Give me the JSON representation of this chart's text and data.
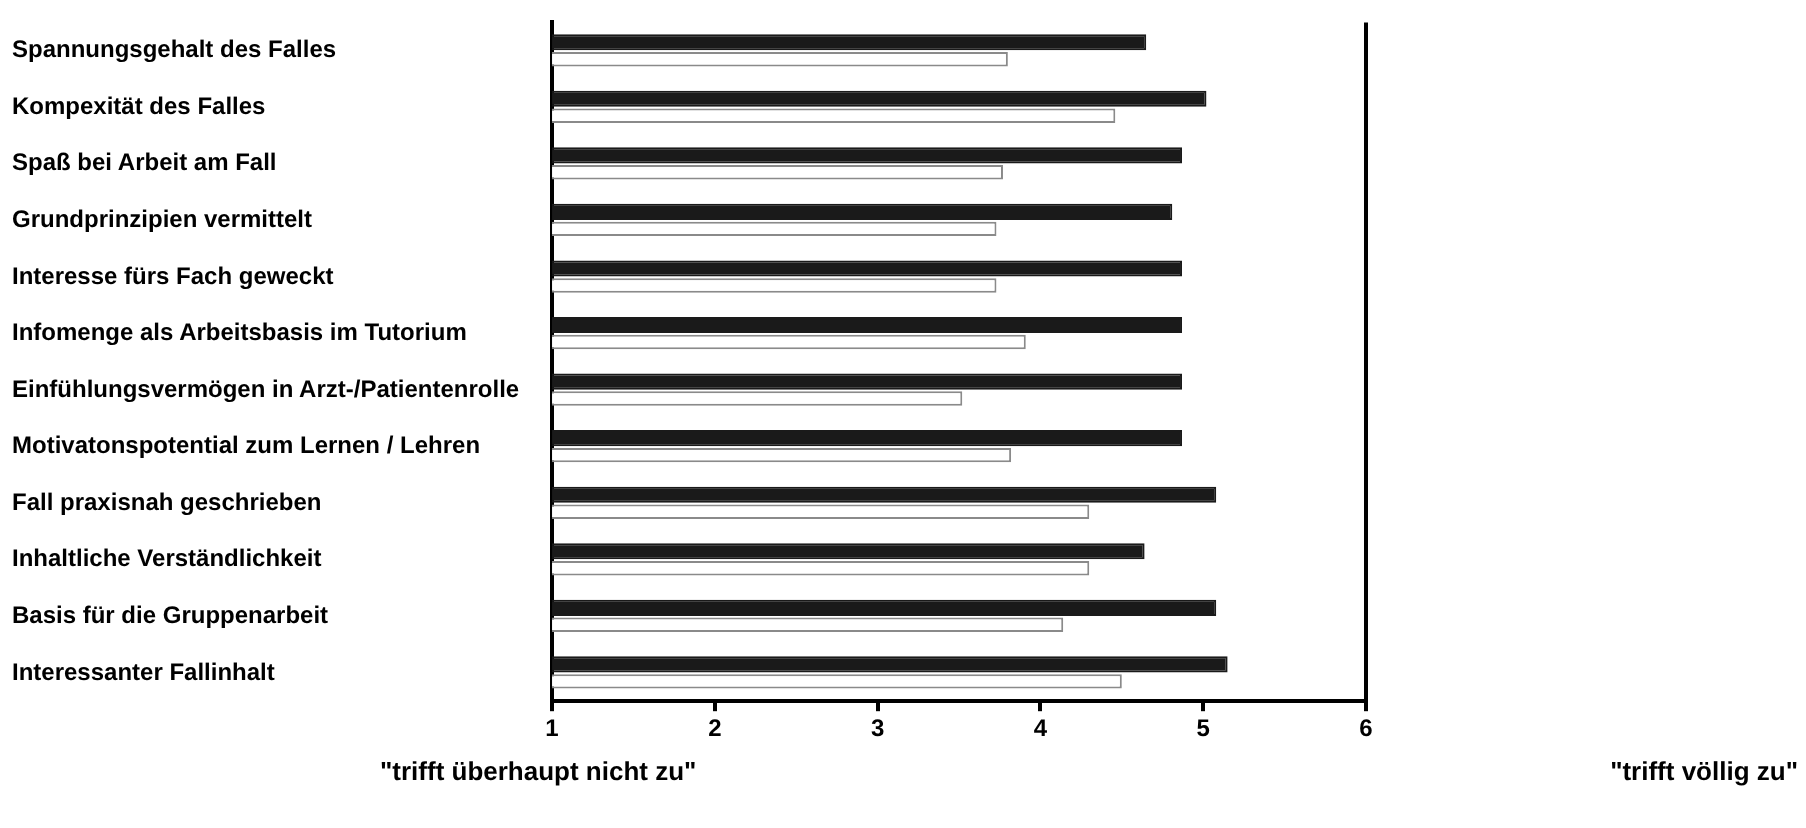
{
  "chart_data": {
    "type": "bar",
    "orientation": "horizontal",
    "categories": [
      "Spannungsgehalt des Falles",
      "Kompexität des Falles",
      "Spaß bei Arbeit am Fall",
      "Grundprinzipien vermittelt",
      "Interesse fürs Fach geweckt",
      "Infomenge als Arbeitsbasis im Tutorium",
      "Einfühlungsvermögen in Arzt-/Patientenrolle",
      "Motivatonspotential zum Lernen / Lehren",
      "Fall praxisnah geschrieben",
      "Inhaltliche Verständlichkeit",
      "Basis für die Gruppenarbeit",
      "Interessanter Fallinhalt"
    ],
    "series": [
      {
        "color": "#1a1a1a",
        "values": [
          4.65,
          5.02,
          4.87,
          4.81,
          4.87,
          4.87,
          4.87,
          4.87,
          5.08,
          4.64,
          5.08,
          5.15
        ]
      },
      {
        "color": "#ffffff",
        "values": [
          3.8,
          4.46,
          3.77,
          3.73,
          3.73,
          3.91,
          3.52,
          3.82,
          4.3,
          4.3,
          4.14,
          4.5
        ]
      }
    ],
    "xlim": [
      1,
      6
    ],
    "xticks": [
      1,
      2,
      3,
      4,
      5,
      6
    ],
    "grid": false,
    "legend": false,
    "annotations": [
      "\"trifft überhaupt nicht zu\"",
      "\"trifft völlig zu\""
    ]
  }
}
